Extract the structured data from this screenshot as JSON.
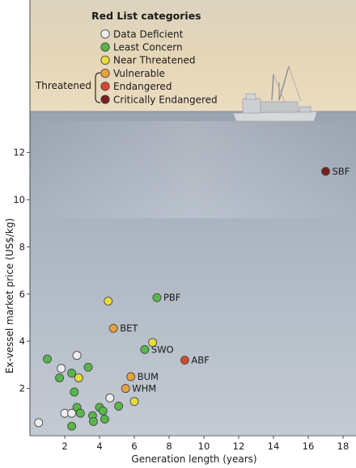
{
  "chart_data": {
    "type": "scatter",
    "title": "",
    "xlabel": "Generation length (years)",
    "ylabel": "Ex-vessel market price (US$/kg)",
    "xlim": [
      0,
      18.5
    ],
    "ylim": [
      0,
      14
    ],
    "xticks": [
      "2",
      "4",
      "6",
      "8",
      "10",
      "12",
      "14",
      "16",
      "18"
    ],
    "yticks": [
      "2",
      "4",
      "6",
      "8",
      "10",
      "12"
    ],
    "grid": false,
    "legend": {
      "title": "Red List categories",
      "placement": "top-left",
      "group_label": "Threatened",
      "entries": [
        {
          "name": "Data Deficient",
          "color": "#eeeeee"
        },
        {
          "name": "Least Concern",
          "color": "#57b74a"
        },
        {
          "name": "Near Threatened",
          "color": "#e8dc3a"
        },
        {
          "name": "Vulnerable",
          "color": "#e8a237"
        },
        {
          "name": "Endangered",
          "color": "#d9462f"
        },
        {
          "name": "Critically Endangered",
          "color": "#7c1f1c"
        }
      ]
    },
    "points": [
      {
        "x": 17.0,
        "y": 11.2,
        "cat": 5,
        "label": "SBF"
      },
      {
        "x": 8.9,
        "y": 3.2,
        "cat": 4,
        "label": "ABF"
      },
      {
        "x": 7.3,
        "y": 5.85,
        "cat": 1,
        "label": "PBF"
      },
      {
        "x": 4.8,
        "y": 4.55,
        "cat": 3,
        "label": "BET"
      },
      {
        "x": 6.6,
        "y": 3.65,
        "cat": 1,
        "label": "SWO"
      },
      {
        "x": 5.8,
        "y": 2.5,
        "cat": 3,
        "label": "BUM"
      },
      {
        "x": 5.5,
        "y": 2.0,
        "cat": 3,
        "label": "WHM"
      },
      {
        "x": 4.5,
        "y": 5.7,
        "cat": 2,
        "label": ""
      },
      {
        "x": 7.05,
        "y": 3.95,
        "cat": 2,
        "label": ""
      },
      {
        "x": 6.0,
        "y": 1.45,
        "cat": 2,
        "label": ""
      },
      {
        "x": 2.8,
        "y": 2.45,
        "cat": 2,
        "label": ""
      },
      {
        "x": 0.5,
        "y": 0.55,
        "cat": 0,
        "label": ""
      },
      {
        "x": 2.0,
        "y": 0.95,
        "cat": 0,
        "label": ""
      },
      {
        "x": 2.4,
        "y": 0.95,
        "cat": 0,
        "label": ""
      },
      {
        "x": 1.8,
        "y": 2.85,
        "cat": 0,
        "label": ""
      },
      {
        "x": 2.7,
        "y": 3.4,
        "cat": 0,
        "label": ""
      },
      {
        "x": 4.6,
        "y": 1.6,
        "cat": 0,
        "label": ""
      },
      {
        "x": 1.0,
        "y": 3.25,
        "cat": 1,
        "label": ""
      },
      {
        "x": 1.7,
        "y": 2.45,
        "cat": 1,
        "label": ""
      },
      {
        "x": 2.4,
        "y": 2.65,
        "cat": 1,
        "label": ""
      },
      {
        "x": 3.35,
        "y": 2.9,
        "cat": 1,
        "label": ""
      },
      {
        "x": 2.55,
        "y": 1.85,
        "cat": 1,
        "label": ""
      },
      {
        "x": 2.7,
        "y": 1.2,
        "cat": 1,
        "label": ""
      },
      {
        "x": 2.9,
        "y": 0.95,
        "cat": 1,
        "label": ""
      },
      {
        "x": 3.6,
        "y": 0.85,
        "cat": 1,
        "label": ""
      },
      {
        "x": 3.65,
        "y": 0.6,
        "cat": 1,
        "label": ""
      },
      {
        "x": 4.0,
        "y": 1.2,
        "cat": 1,
        "label": ""
      },
      {
        "x": 4.2,
        "y": 1.05,
        "cat": 1,
        "label": ""
      },
      {
        "x": 4.3,
        "y": 0.7,
        "cat": 1,
        "label": ""
      },
      {
        "x": 5.1,
        "y": 1.25,
        "cat": 1,
        "label": ""
      },
      {
        "x": 2.4,
        "y": 0.4,
        "cat": 1,
        "label": ""
      }
    ]
  }
}
